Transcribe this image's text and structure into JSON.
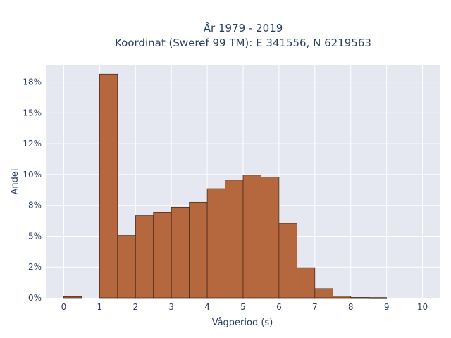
{
  "chart_data": {
    "type": "bar",
    "title_line1": "År 1979 - 2019",
    "title_line2": "Koordinat (Sweref 99 TM): E 341556, N 6219563",
    "xlabel": "Vågperiod (s)",
    "ylabel": "Andel",
    "x_range": [
      -0.5,
      10.5
    ],
    "y_range": [
      0,
      0.1885
    ],
    "x_ticks": [
      0,
      1,
      2,
      3,
      4,
      5,
      6,
      7,
      8,
      9,
      10
    ],
    "x_tick_labels": [
      "0",
      "1",
      "2",
      "3",
      "4",
      "5",
      "6",
      "7",
      "8",
      "9",
      "10"
    ],
    "y_ticks": [
      0,
      0.025,
      0.05,
      0.075,
      0.1,
      0.125,
      0.15,
      0.175
    ],
    "y_tick_labels": [
      "0%",
      "2%",
      "5%",
      "8%",
      "10%",
      "12%",
      "15%",
      "18%"
    ],
    "bin_width": 0.5,
    "bins": [
      {
        "start": 0.0,
        "value": 0.001
      },
      {
        "start": 0.5,
        "value": 0.0
      },
      {
        "start": 1.0,
        "value": 0.1815
      },
      {
        "start": 1.5,
        "value": 0.0505
      },
      {
        "start": 2.0,
        "value": 0.0665
      },
      {
        "start": 2.5,
        "value": 0.0695
      },
      {
        "start": 3.0,
        "value": 0.0735
      },
      {
        "start": 3.5,
        "value": 0.0775
      },
      {
        "start": 4.0,
        "value": 0.0885
      },
      {
        "start": 4.5,
        "value": 0.0955
      },
      {
        "start": 5.0,
        "value": 0.0995
      },
      {
        "start": 5.5,
        "value": 0.098
      },
      {
        "start": 6.0,
        "value": 0.0605
      },
      {
        "start": 6.5,
        "value": 0.0245
      },
      {
        "start": 7.0,
        "value": 0.0075
      },
      {
        "start": 7.5,
        "value": 0.0015
      },
      {
        "start": 8.0,
        "value": 0.0003
      },
      {
        "start": 8.5,
        "value": 0.0002
      }
    ],
    "colors": {
      "bar_fill": "#b5683e",
      "bar_stroke": "#3d2616",
      "plot_bg": "#e5e8f1",
      "grid": "#ffffff",
      "text": "#2a3f5f"
    },
    "grid": true,
    "legend": "none"
  }
}
